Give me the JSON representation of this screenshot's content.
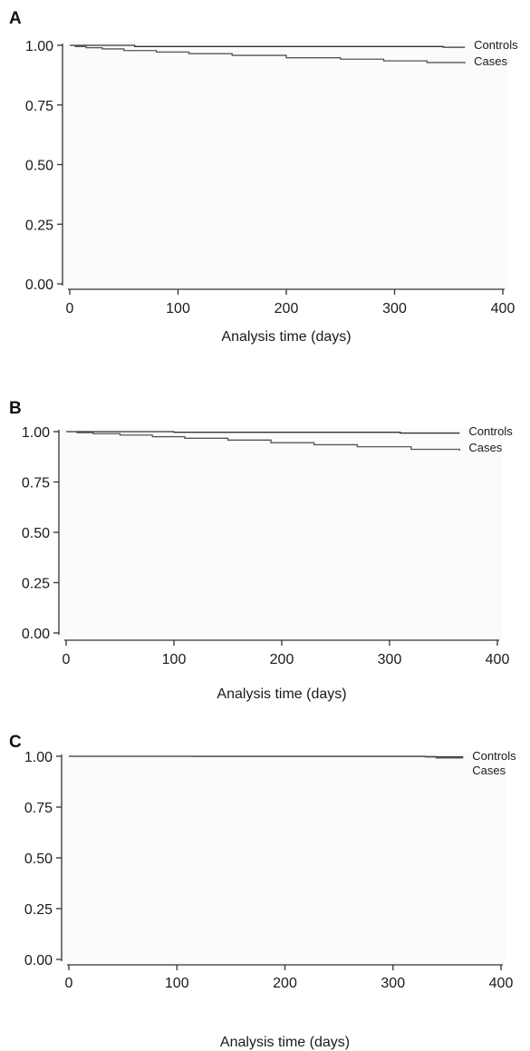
{
  "colors": {
    "line": "#333333",
    "cases_line": "#555555",
    "plot_background": "#fbfbfb"
  },
  "chart_data": [
    {
      "panel": "A",
      "type": "line",
      "xlabel": "Analysis time (days)",
      "ylabel": "",
      "xlim": [
        0,
        400
      ],
      "ylim": [
        0,
        1
      ],
      "x_ticks": [
        "0",
        "100",
        "200",
        "300",
        "400"
      ],
      "y_ticks": [
        "0.00",
        "0.25",
        "0.50",
        "0.75",
        "1.00"
      ],
      "grid": false,
      "series": [
        {
          "name": "Controls",
          "x": [
            0,
            60,
            60,
            345,
            345,
            365
          ],
          "y": [
            1.0,
            1.0,
            0.995,
            0.995,
            0.992,
            0.992
          ]
        },
        {
          "name": "Cases",
          "x": [
            0,
            5,
            15,
            30,
            50,
            80,
            110,
            150,
            200,
            250,
            290,
            330,
            365
          ],
          "y": [
            1.0,
            0.995,
            0.99,
            0.985,
            0.978,
            0.972,
            0.965,
            0.958,
            0.948,
            0.942,
            0.935,
            0.928,
            0.925
          ]
        }
      ]
    },
    {
      "panel": "B",
      "type": "line",
      "xlabel": "Analysis time (days)",
      "ylabel": "",
      "xlim": [
        0,
        400
      ],
      "ylim": [
        0,
        1
      ],
      "x_ticks": [
        "0",
        "100",
        "200",
        "300",
        "400"
      ],
      "y_ticks": [
        "0.00",
        "0.25",
        "0.50",
        "0.75",
        "1.00"
      ],
      "grid": false,
      "series": [
        {
          "name": "Controls",
          "x": [
            0,
            100,
            100,
            310,
            310,
            365
          ],
          "y": [
            1.0,
            1.0,
            0.997,
            0.997,
            0.993,
            0.993
          ]
        },
        {
          "name": "Cases",
          "x": [
            0,
            10,
            25,
            50,
            80,
            110,
            150,
            190,
            230,
            270,
            320,
            365
          ],
          "y": [
            1.0,
            0.995,
            0.99,
            0.983,
            0.975,
            0.967,
            0.958,
            0.945,
            0.935,
            0.925,
            0.912,
            0.905
          ]
        }
      ]
    },
    {
      "panel": "C",
      "type": "line",
      "xlabel": "Analysis time (days)",
      "ylabel": "",
      "xlim": [
        0,
        400
      ],
      "ylim": [
        0,
        1
      ],
      "x_ticks": [
        "0",
        "100",
        "200",
        "300",
        "400"
      ],
      "y_ticks": [
        "0.00",
        "0.25",
        "0.50",
        "0.75",
        "1.00"
      ],
      "grid": false,
      "series": [
        {
          "name": "Controls",
          "x": [
            0,
            330,
            330,
            365
          ],
          "y": [
            1.0,
            1.0,
            0.997,
            0.997
          ]
        },
        {
          "name": "Cases",
          "x": [
            0,
            115,
            115,
            340,
            340,
            365
          ],
          "y": [
            1.0,
            1.0,
            0.999,
            0.999,
            0.992,
            0.992
          ]
        }
      ]
    }
  ]
}
